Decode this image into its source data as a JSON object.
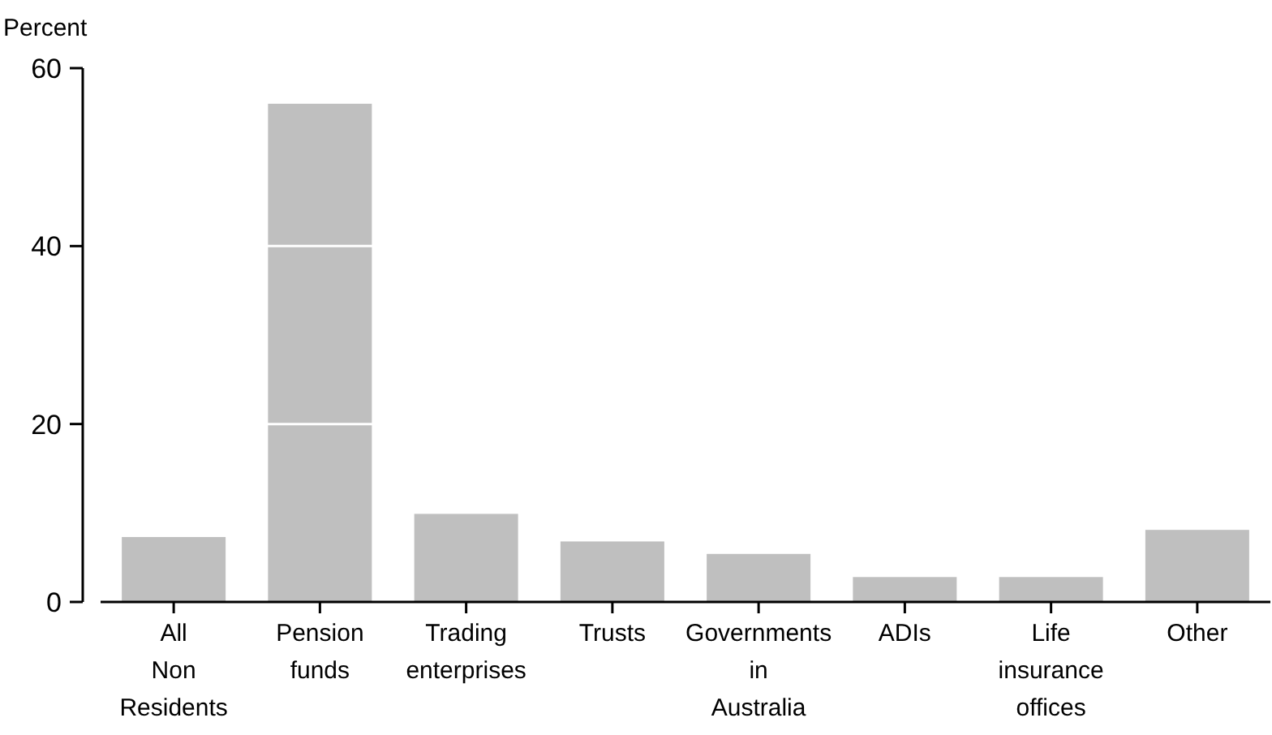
{
  "chart_data": {
    "type": "bar",
    "ylabel": "Percent",
    "categories": [
      "All\nNon\nResidents",
      "Pension\nfunds",
      "Trading\nenterprises",
      "Trusts",
      "Governments\nin\nAustralia",
      "ADIs",
      "Life\ninsurance\noffices",
      "Other"
    ],
    "values": [
      7.3,
      56.0,
      9.9,
      6.8,
      5.4,
      2.8,
      2.8,
      8.1
    ],
    "color": "#bfbfbf",
    "ylim": [
      0,
      60
    ],
    "yticks": [
      0,
      20,
      40,
      60
    ],
    "grid": "y"
  }
}
